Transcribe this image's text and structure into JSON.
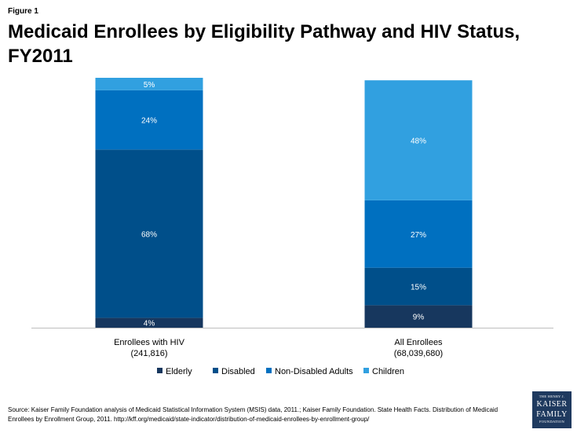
{
  "figure_label": "Figure 1",
  "title": "Medicaid Enrollees by Eligibility Pathway and HIV Status, FY2011",
  "source": "Source: Kaiser Family Foundation analysis of Medicaid Statistical Information System (MSIS) data, 2011.; Kaiser Family Foundation. State Health Facts. Distribution of Medicaid Enrollees by Enrollment Group, 2011. http://kff.org/medicaid/state-indicator/distribution-of-medicaid-enrollees-by-enrollment-group/",
  "logo": {
    "line1": "THE HENRY J.",
    "line2": "KAISER",
    "line3": "FAMILY",
    "line4": "FOUNDATION"
  },
  "chart_data": {
    "type": "bar",
    "stacked": true,
    "orientation": "vertical",
    "categories": [
      [
        "Enrollees with HIV",
        "(241,816)"
      ],
      [
        "All Enrollees",
        "(68,039,680)"
      ]
    ],
    "series": [
      {
        "name": "Elderly",
        "values": [
          4,
          9
        ],
        "labels": [
          "4%",
          "9%"
        ],
        "color": "#17375e"
      },
      {
        "name": "Disabled",
        "values": [
          68,
          15
        ],
        "labels": [
          "68%",
          "15%"
        ],
        "color": "#004f8a"
      },
      {
        "name": "Non-Disabled Adults",
        "values": [
          24,
          27
        ],
        "labels": [
          "24%",
          "27%"
        ],
        "color": "#0070c0"
      },
      {
        "name": "Children",
        "values": [
          5,
          48
        ],
        "labels": [
          "5%",
          "48%"
        ],
        "color": "#31a0e0"
      }
    ],
    "ylim": [
      0,
      100
    ],
    "legend_position": "bottom",
    "grid": false,
    "data_label_color": "#ffffff"
  }
}
